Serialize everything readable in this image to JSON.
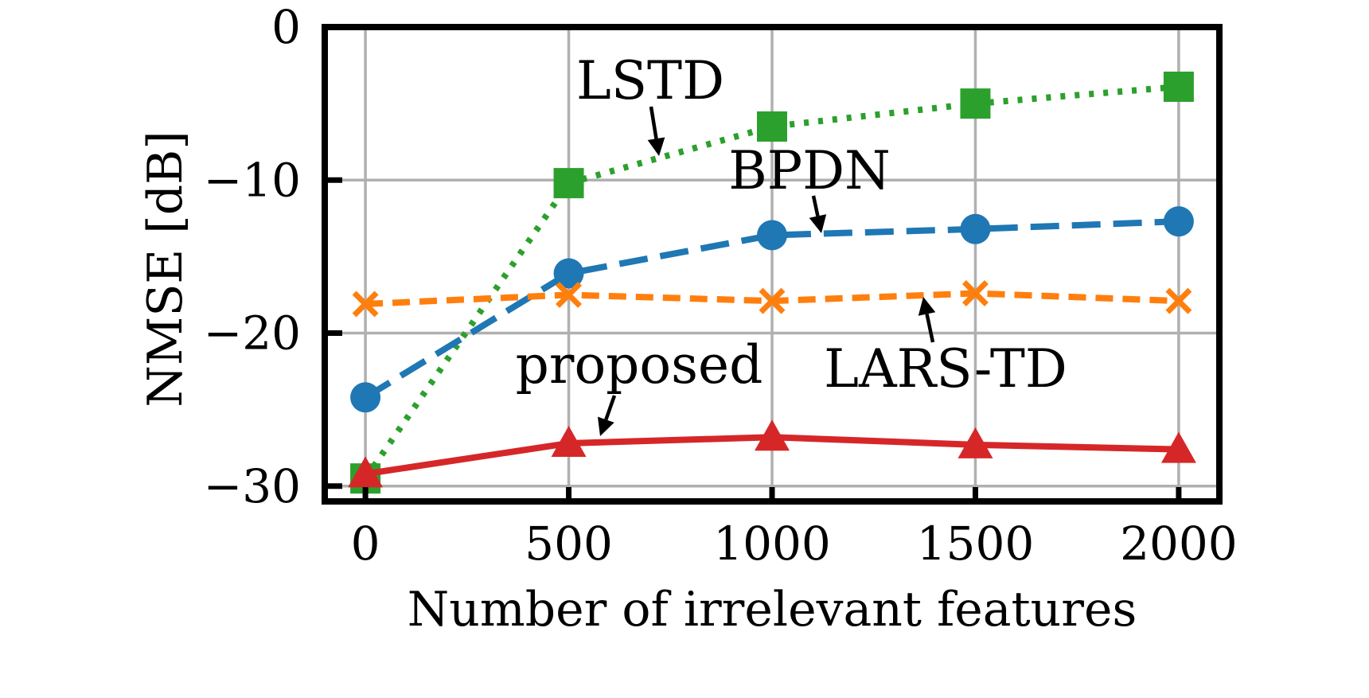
{
  "chart_data": {
    "type": "line",
    "xlabel": "Number of irrelevant features",
    "ylabel": "NMSE [dB]",
    "xlim": [
      -100,
      2100
    ],
    "ylim": [
      -31,
      0
    ],
    "xticks": [
      0,
      500,
      1000,
      1500,
      2000
    ],
    "xtick_labels": [
      "0",
      "500",
      "1000",
      "1500",
      "2000"
    ],
    "yticks": [
      0,
      -10,
      -20,
      -30
    ],
    "ytick_labels": [
      "0",
      "−10",
      "−20",
      "−30"
    ],
    "grid": true,
    "legend": "none (inline annotations)",
    "x": [
      0,
      500,
      1000,
      1500,
      2000
    ],
    "series": [
      {
        "name": "LSTD",
        "values": [
          -29.5,
          -10.2,
          -6.5,
          -5.0,
          -3.9
        ],
        "color": "#2ca02c",
        "line_style": "dotted",
        "marker": "square"
      },
      {
        "name": "BPDN",
        "values": [
          -24.2,
          -16.1,
          -13.6,
          -13.2,
          -12.7
        ],
        "color": "#1f77b4",
        "line_style": "dashed",
        "marker": "circle"
      },
      {
        "name": "LARS-TD",
        "values": [
          -18.1,
          -17.5,
          -17.9,
          -17.4,
          -17.9
        ],
        "color": "#ff7f0e",
        "line_style": "dashed-short",
        "marker": "x"
      },
      {
        "name": "proposed",
        "values": [
          -29.2,
          -27.2,
          -26.8,
          -27.3,
          -27.6
        ],
        "color": "#d62728",
        "line_style": "solid",
        "marker": "triangle"
      }
    ],
    "annotations": [
      {
        "text": "LSTD",
        "series": "LSTD",
        "points_to_x": 730
      },
      {
        "text": "BPDN",
        "series": "BPDN",
        "points_to_x": 1130
      },
      {
        "text": "LARS-TD",
        "series": "LARS-TD",
        "points_to_x": 1390
      },
      {
        "text": "proposed",
        "series": "proposed",
        "points_to_x": 570
      }
    ]
  }
}
